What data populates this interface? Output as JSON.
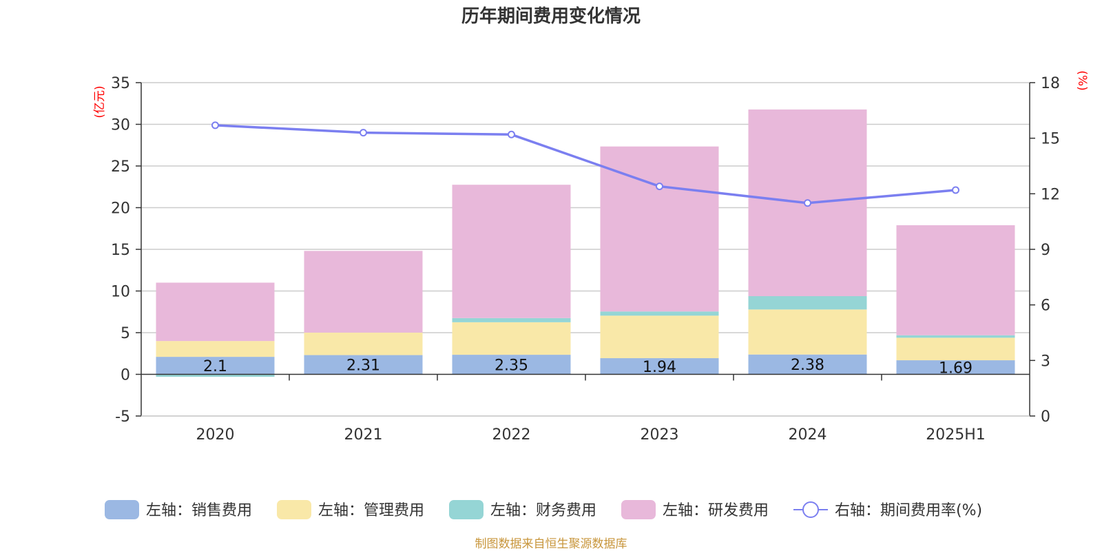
{
  "chart_data": {
    "type": "bar",
    "stacked": true,
    "title": "历年期间费用变化情况",
    "categories": [
      "2020",
      "2021",
      "2022",
      "2023",
      "2024",
      "2025H1"
    ],
    "y_left": {
      "unit": "(亿元)",
      "min": -5,
      "max": 35,
      "ticks": [
        -5,
        0,
        5,
        10,
        15,
        20,
        25,
        30,
        35
      ]
    },
    "y_right": {
      "unit": "(%)",
      "min": 0,
      "max": 18,
      "ticks": [
        0,
        3,
        6,
        9,
        12,
        15,
        18
      ]
    },
    "series": [
      {
        "name": "左轴：销售费用",
        "type": "bar",
        "axis": "left",
        "color": "#9bb8e3",
        "values": [
          2.1,
          2.31,
          2.35,
          1.94,
          2.38,
          1.69
        ],
        "labels": [
          "2.1",
          "2.31",
          "2.35",
          "1.94",
          "2.38",
          "1.69"
        ]
      },
      {
        "name": "左轴：管理费用",
        "type": "bar",
        "axis": "left",
        "color": "#f9e8a8",
        "values": [
          1.9,
          2.7,
          3.9,
          5.1,
          5.4,
          2.7
        ]
      },
      {
        "name": "左轴：财务费用",
        "type": "bar",
        "axis": "left",
        "color": "#95d5d5",
        "values": [
          -0.3,
          0.0,
          0.5,
          0.5,
          1.6,
          0.3
        ]
      },
      {
        "name": "左轴：研发费用",
        "type": "bar",
        "axis": "left",
        "color": "#e8b8da",
        "values": [
          7.0,
          9.8,
          16.0,
          19.8,
          22.4,
          13.2
        ]
      },
      {
        "name": "右轴：期间费用率(%)",
        "type": "line",
        "axis": "right",
        "color": "#7b7ff0",
        "values": [
          15.7,
          15.3,
          15.2,
          12.4,
          11.5,
          12.2
        ]
      }
    ],
    "grid": true,
    "legend_position": "bottom"
  },
  "source": "制图数据来自恒生聚源数据库"
}
